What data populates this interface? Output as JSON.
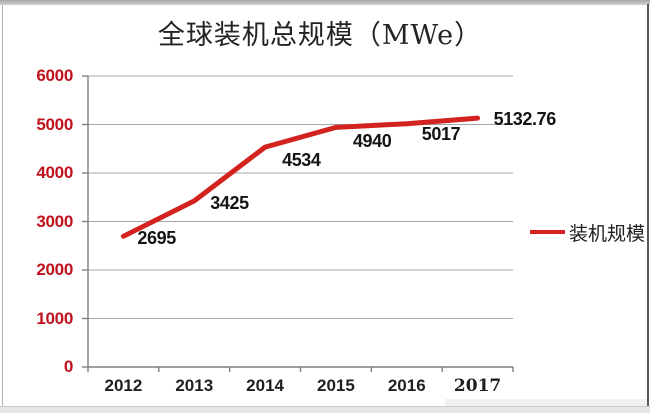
{
  "chart_data": {
    "type": "line",
    "title": "全球装机总规模（MWe）",
    "categories": [
      "2012",
      "2013",
      "2014",
      "2015",
      "2016",
      "2017"
    ],
    "series": [
      {
        "name": "装机规模",
        "values": [
          2695,
          3425,
          4534,
          4940,
          5017,
          5132.76
        ],
        "data_labels": [
          "2695",
          "3425",
          "4534",
          "4940",
          "5017",
          "5132.76"
        ]
      }
    ],
    "xlabel": "",
    "ylabel": "",
    "ylim": [
      0,
      6000
    ],
    "ytick_step": 1000,
    "yticks": [
      "0",
      "1000",
      "2000",
      "3000",
      "4000",
      "5000",
      "6000"
    ],
    "grid": true,
    "legend_position": "middle-right",
    "colors": {
      "line": "#d2231e",
      "ytick_text": "#c0121c",
      "grid": "#a6a6a6",
      "axis": "#7f7f7f",
      "label_text": "#141414"
    }
  }
}
